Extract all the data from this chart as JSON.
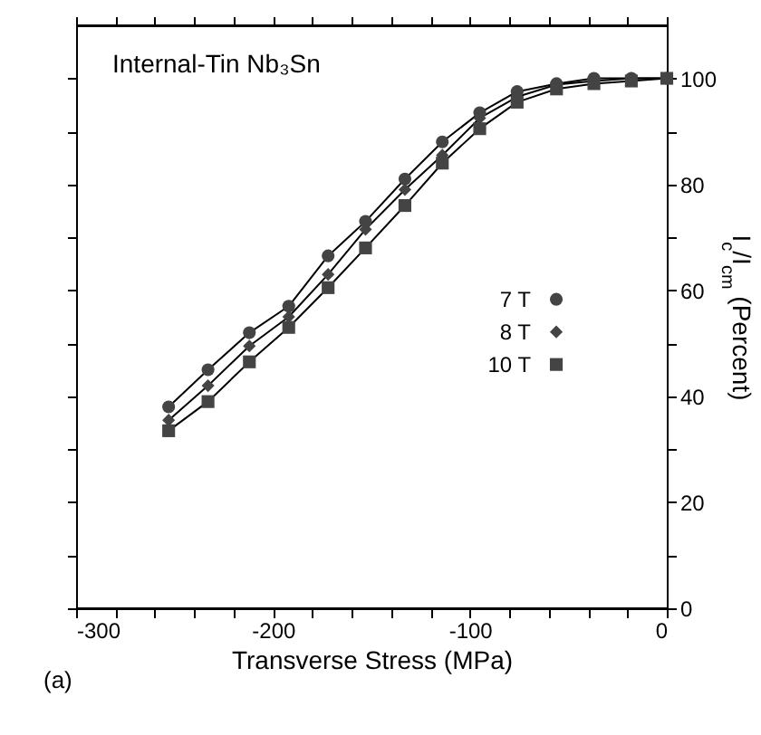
{
  "chart_data": {
    "type": "line",
    "xlabel": "Transverse Stress (MPa)",
    "ylabel": "I$_{c}$/I$_{cm}$ (Percent)",
    "annotations": [
      "Internal-Tin Nb₃Sn",
      "(a)"
    ],
    "x": [
      -253,
      -233,
      -212,
      -192,
      -172,
      -153,
      -133,
      -114,
      -95,
      -76,
      -56,
      -37,
      -18,
      0
    ],
    "series": [
      {
        "name": "7 T",
        "color": "#444444",
        "marker": "circle",
        "values": [
          38,
          45,
          52,
          57,
          66.5,
          73,
          81,
          88,
          93.5,
          97.5,
          99,
          100,
          100,
          100
        ]
      },
      {
        "name": "8 T",
        "color": "#444444",
        "marker": "diamond",
        "values": [
          35.5,
          42,
          49.5,
          55,
          63,
          71.5,
          79,
          85.5,
          92.5,
          96.5,
          98.8,
          99.5,
          100,
          100
        ]
      },
      {
        "name": "10 T",
        "color": "#444444",
        "marker": "square",
        "values": [
          33.5,
          39,
          46.5,
          53,
          60.5,
          68,
          76,
          84,
          90.5,
          95.5,
          98,
          99,
          99.5,
          100
        ]
      }
    ],
    "xlim": [
      -300,
      0
    ],
    "xticks": [
      -300,
      {
        "value": -280,
        "label": null
      },
      {
        "value": -260,
        "label": null
      },
      {
        "value": -240,
        "label": null
      },
      {
        "value": -220,
        "label": null
      },
      -200,
      {
        "value": -180,
        "label": null
      },
      {
        "value": -160,
        "label": null
      },
      {
        "value": -140,
        "label": null
      },
      {
        "value": -120,
        "label": null
      },
      -100,
      {
        "value": -80,
        "label": null
      },
      {
        "value": -60,
        "label": null
      },
      {
        "value": -40,
        "label": null
      },
      {
        "value": -20,
        "label": null
      },
      0
    ],
    "ylim": [
      0,
      110
    ],
    "yticks": [
      0,
      {
        "value": 10,
        "label": null
      },
      20,
      {
        "value": 30,
        "label": null
      },
      40,
      {
        "value": 50,
        "label": null
      },
      60,
      {
        "value": 70,
        "label": null
      },
      80,
      {
        "value": 90,
        "label": null
      },
      100
    ],
    "grid": false,
    "legend": "right",
    "line_style": "solid"
  }
}
